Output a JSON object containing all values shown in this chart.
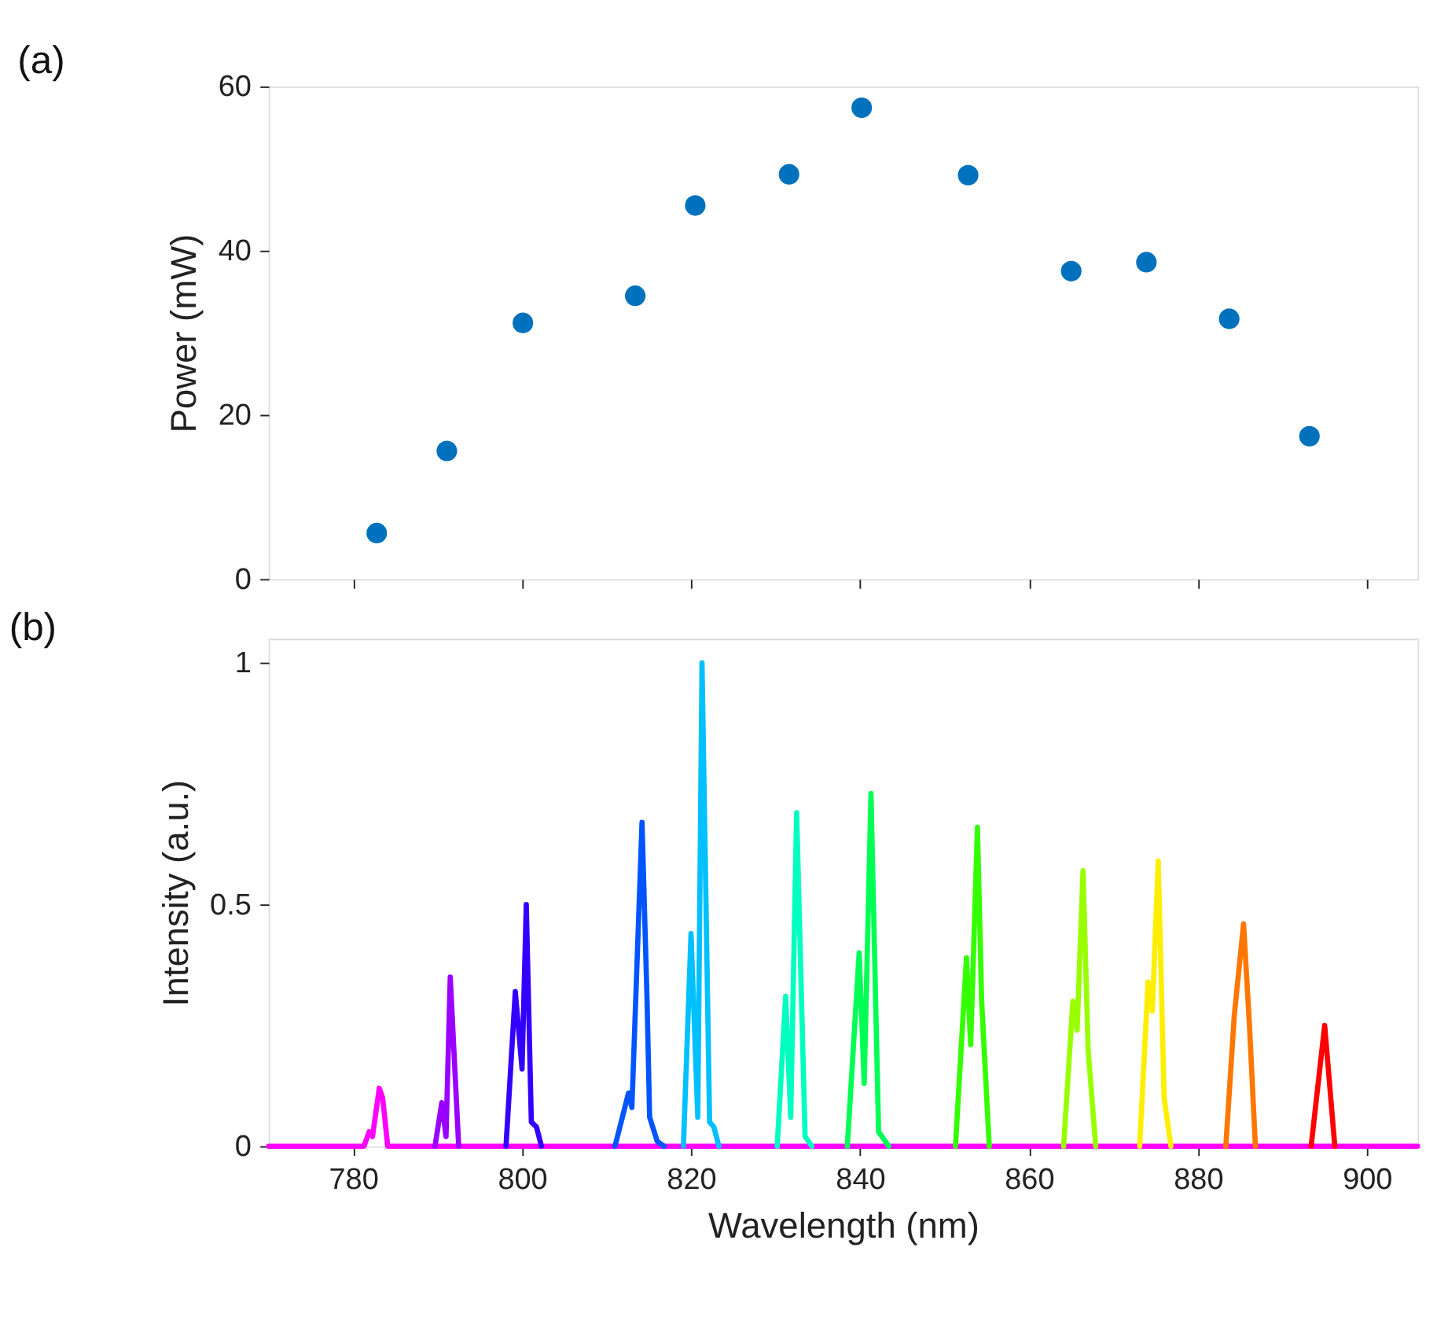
{
  "chart_data": [
    {
      "type": "scatter",
      "title": "(a)",
      "ylabel": "Power (mW)",
      "xlim": [
        770,
        906
      ],
      "xticks": [
        780,
        800,
        820,
        840,
        860,
        880,
        900
      ],
      "ylim": [
        0,
        60
      ],
      "yticks": [
        0,
        20,
        40,
        60
      ],
      "tick_labels": "y",
      "grid": false,
      "marker": "circle",
      "x": [
        782.8,
        791.1,
        800.1,
        813.4,
        820.5,
        831.6,
        840.2,
        852.8,
        865.0,
        873.9,
        883.7,
        893.2
      ],
      "series": [
        {
          "color": "#0072bd",
          "values": [
            5.6,
            15.6,
            31.2,
            34.5,
            45.5,
            49.3,
            57.4,
            49.2,
            37.5,
            38.6,
            31.7,
            17.4
          ]
        }
      ]
    },
    {
      "type": "line",
      "title": "(b)",
      "xlabel": "Wavelength (nm)",
      "ylabel": "Intensity (a.u.)",
      "xlim": [
        770,
        906
      ],
      "xticks": [
        780,
        800,
        820,
        840,
        860,
        880,
        900
      ],
      "ylim": [
        0,
        1.05
      ],
      "yticks": [
        0,
        0.5,
        1
      ],
      "grid": false,
      "line_style": "solid",
      "marker": "none",
      "series": [
        {
          "color": "#ff00ff",
          "x": [
            770,
            781.3,
            781.9,
            782.3,
            783.1,
            783.5,
            784.1,
            906
          ],
          "values": [
            0,
            0,
            0.03,
            0.02,
            0.12,
            0.1,
            0,
            0
          ]
        },
        {
          "color": "#9900ff",
          "x": [
            789.7,
            790.5,
            791.0,
            791.5,
            792.5
          ],
          "values": [
            0,
            0.09,
            0.02,
            0.35,
            0
          ]
        },
        {
          "color": "#3300ff",
          "x": [
            798.1,
            799.2,
            800.0,
            800.5,
            801.1,
            801.7,
            802.3
          ],
          "values": [
            0,
            0.32,
            0.16,
            0.5,
            0.05,
            0.04,
            0
          ]
        },
        {
          "color": "#0055ff",
          "x": [
            811.0,
            812.6,
            813.0,
            814.2,
            814.8,
            815.1,
            816.0,
            816.8
          ],
          "values": [
            0,
            0.11,
            0.08,
            0.67,
            0.3,
            0.06,
            0.01,
            0
          ]
        },
        {
          "color": "#00c0ff",
          "x": [
            819.1,
            820.0,
            820.8,
            821.3,
            822.2,
            822.7,
            823.3
          ],
          "values": [
            0,
            0.44,
            0.06,
            1.0,
            0.05,
            0.04,
            0
          ]
        },
        {
          "color": "#00ffc0",
          "x": [
            830.2,
            831.2,
            831.8,
            832.5,
            833.5,
            834.3
          ],
          "values": [
            0,
            0.31,
            0.06,
            0.69,
            0.02,
            0
          ]
        },
        {
          "color": "#00ff55",
          "x": [
            838.5,
            839.9,
            840.5,
            841.3,
            842.2,
            843.4
          ],
          "values": [
            0,
            0.4,
            0.13,
            0.73,
            0.03,
            0
          ]
        },
        {
          "color": "#33ff00",
          "x": [
            851.3,
            852.6,
            853.1,
            853.9,
            854.4,
            855.3
          ],
          "values": [
            0,
            0.39,
            0.21,
            0.66,
            0.3,
            0
          ]
        },
        {
          "color": "#99ff00",
          "x": [
            864.1,
            865.2,
            865.7,
            866.4,
            867.0,
            867.9
          ],
          "values": [
            0,
            0.3,
            0.24,
            0.57,
            0.2,
            0
          ]
        },
        {
          "color": "#ffee00",
          "x": [
            873.1,
            874.1,
            874.6,
            875.3,
            876.0,
            876.8
          ],
          "values": [
            0,
            0.34,
            0.28,
            0.59,
            0.1,
            0
          ]
        },
        {
          "color": "#ff7700",
          "x": [
            883.3,
            884.3,
            885.4,
            886.1,
            886.8
          ],
          "values": [
            0,
            0.27,
            0.46,
            0.25,
            0
          ]
        },
        {
          "color": "#ff0000",
          "x": [
            893.4,
            895.0,
            896.2
          ],
          "values": [
            0,
            0.25,
            0
          ]
        }
      ]
    }
  ]
}
